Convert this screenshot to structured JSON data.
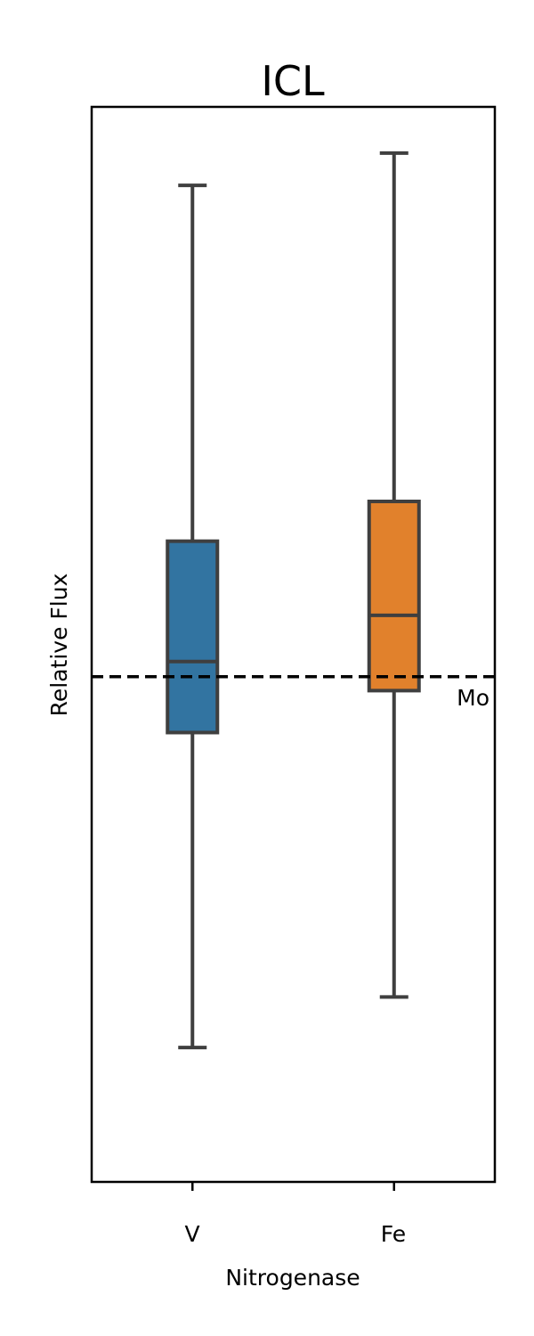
{
  "chart_data": {
    "type": "box",
    "title": "ICL",
    "xlabel": "Nitrogenase",
    "ylabel": "Relative Flux",
    "categories": [
      "V",
      "Fe"
    ],
    "y_tick_labels_shown": false,
    "grid": false,
    "boxes": [
      {
        "category": "V",
        "color": "#3274a1",
        "whisker_low": 0.125,
        "q1": 0.418,
        "median": 0.484,
        "q3": 0.596,
        "whisker_high": 0.927
      },
      {
        "category": "Fe",
        "color": "#e1812c",
        "whisker_low": 0.172,
        "q1": 0.457,
        "median": 0.527,
        "q3": 0.633,
        "whisker_high": 0.957
      }
    ],
    "reference_line": {
      "label": "Mo",
      "value": 0.47,
      "style": "dashed",
      "color": "#000000"
    },
    "ylim": [
      0,
      1
    ]
  }
}
